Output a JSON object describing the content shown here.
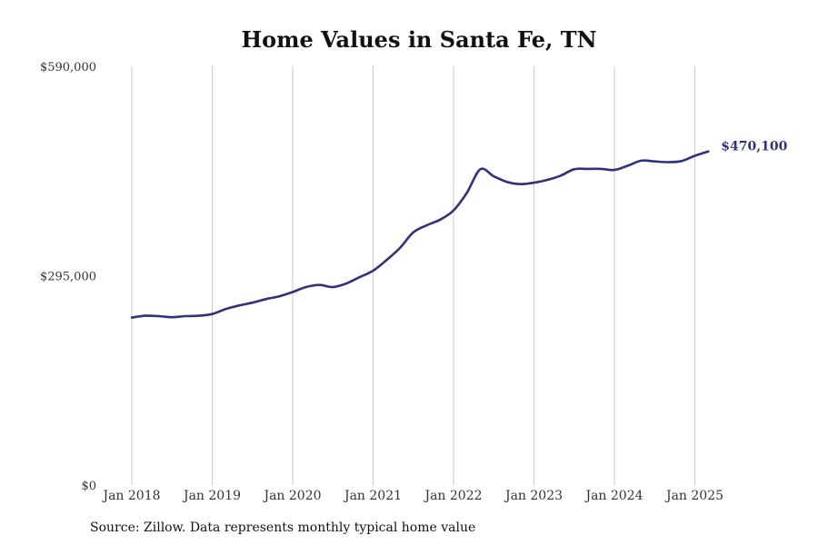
{
  "chart_data": {
    "type": "line",
    "title": "Home Values in Santa Fe, TN",
    "xlabel": "",
    "ylabel": "",
    "ylim": [
      0,
      590000
    ],
    "y_ticks": [
      0,
      295000,
      590000
    ],
    "y_tick_labels": [
      "$0",
      "$295,000",
      "$590,000"
    ],
    "x_range": [
      "2018-01",
      "2025-04"
    ],
    "x_ticks": [
      "2018-01",
      "2019-01",
      "2020-01",
      "2021-01",
      "2022-01",
      "2023-01",
      "2024-01",
      "2025-01"
    ],
    "x_tick_labels": [
      "Jan 2018",
      "Jan 2019",
      "Jan 2020",
      "Jan 2021",
      "Jan 2022",
      "Jan 2023",
      "Jan 2024",
      "Jan 2025"
    ],
    "grid": "vertical",
    "color": "#33307d",
    "series": [
      {
        "x": [
          "2018-01",
          "2018-03",
          "2018-05",
          "2018-07",
          "2018-09",
          "2018-11",
          "2019-01",
          "2019-03",
          "2019-05",
          "2019-07",
          "2019-09",
          "2019-11",
          "2020-01",
          "2020-03",
          "2020-05",
          "2020-07",
          "2020-09",
          "2020-11",
          "2021-01",
          "2021-03",
          "2021-05",
          "2021-07",
          "2021-09",
          "2021-11",
          "2022-01",
          "2022-03",
          "2022-05",
          "2022-07",
          "2022-09",
          "2022-11",
          "2023-01",
          "2023-03",
          "2023-05",
          "2023-07",
          "2023-09",
          "2023-11",
          "2024-01",
          "2024-03",
          "2024-05",
          "2024-07",
          "2024-09",
          "2024-11",
          "2025-01",
          "2025-03"
        ],
        "values": [
          236000,
          238500,
          238000,
          236500,
          238000,
          238500,
          241000,
          248000,
          253000,
          257000,
          262000,
          266000,
          272000,
          279000,
          282000,
          279000,
          284000,
          293000,
          302000,
          317000,
          334000,
          356000,
          366000,
          374000,
          387000,
          412000,
          445000,
          435000,
          427000,
          424000,
          426000,
          430000,
          436000,
          445000,
          445500,
          445500,
          444000,
          450000,
          457000,
          456000,
          455000,
          456500,
          464000,
          470100
        ]
      }
    ],
    "end_label": "$470,100"
  },
  "footer": {
    "source": "Source: Zillow. Data represents monthly typical home value"
  }
}
